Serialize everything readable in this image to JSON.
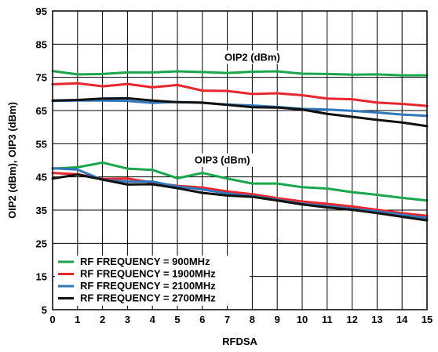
{
  "chart_data": {
    "type": "line",
    "title": "",
    "xlabel": "RFDSA",
    "ylabel": "OIP2 (dBm), OIP3 (dBm)",
    "xlim": [
      0,
      15
    ],
    "ylim": [
      5,
      95
    ],
    "x_ticks": [
      0,
      1,
      2,
      3,
      4,
      5,
      6,
      7,
      8,
      9,
      10,
      11,
      12,
      13,
      14,
      15
    ],
    "y_ticks": [
      5,
      15,
      25,
      35,
      45,
      55,
      65,
      75,
      85,
      95
    ],
    "grid": true,
    "legend_position": "bottom-left",
    "annotations": [
      {
        "text": "OIP2 (dBm)",
        "x": 8,
        "y": 80
      },
      {
        "text": "OIP3 (dBm)",
        "x": 6.8,
        "y": 49
      }
    ],
    "series": [
      {
        "name": "RF FREQUENCY = 900MHz",
        "color": "#1aa64a",
        "group": "OIP2",
        "x": [
          0,
          1,
          2,
          3,
          4,
          5,
          6,
          7,
          8,
          9,
          10,
          11,
          12,
          13,
          14,
          15
        ],
        "y": [
          76.9,
          75.9,
          76.0,
          76.5,
          76.5,
          76.8,
          76.6,
          76.3,
          76.7,
          76.8,
          76.1,
          76.0,
          75.8,
          75.9,
          75.6,
          75.6
        ]
      },
      {
        "name": "RF FREQUENCY = 1900MHz",
        "color": "#e8262b",
        "group": "OIP2",
        "x": [
          0,
          1,
          2,
          3,
          4,
          5,
          6,
          7,
          8,
          9,
          10,
          11,
          12,
          13,
          14,
          15
        ],
        "y": [
          72.9,
          73.2,
          72.3,
          73.0,
          72.0,
          72.7,
          71.0,
          70.9,
          70.0,
          70.2,
          69.6,
          68.6,
          68.4,
          67.4,
          67.0,
          66.4
        ]
      },
      {
        "name": "RF FREQUENCY = 2100MHz",
        "color": "#2f78bd",
        "group": "OIP2",
        "x": [
          0,
          1,
          2,
          3,
          4,
          5,
          6,
          7,
          8,
          9,
          10,
          11,
          12,
          13,
          14,
          15
        ],
        "y": [
          67.9,
          68.0,
          68.0,
          67.9,
          67.3,
          67.6,
          67.3,
          66.8,
          66.5,
          66.1,
          65.5,
          65.3,
          64.9,
          64.4,
          63.8,
          63.4
        ]
      },
      {
        "name": "RF FREQUENCY = 2700MHz",
        "color": "#111111",
        "group": "OIP2",
        "x": [
          0,
          1,
          2,
          3,
          4,
          5,
          6,
          7,
          8,
          9,
          10,
          11,
          12,
          13,
          14,
          15
        ],
        "y": [
          68.0,
          68.2,
          68.6,
          68.7,
          68.0,
          67.5,
          67.4,
          66.7,
          66.0,
          65.9,
          65.3,
          64.0,
          63.1,
          62.2,
          61.4,
          60.3
        ]
      },
      {
        "name": "RF FREQUENCY = 900MHz",
        "color": "#1aa64a",
        "group": "OIP3",
        "x": [
          0,
          1,
          2,
          3,
          4,
          5,
          6,
          7,
          8,
          9,
          10,
          11,
          12,
          13,
          14,
          15
        ],
        "y": [
          47.5,
          47.9,
          49.3,
          47.5,
          47.1,
          44.6,
          46.2,
          44.5,
          43.0,
          43.0,
          41.9,
          41.5,
          40.4,
          39.6,
          38.7,
          37.9
        ]
      },
      {
        "name": "RF FREQUENCY = 1900MHz",
        "color": "#e8262b",
        "group": "OIP3",
        "x": [
          0,
          1,
          2,
          3,
          4,
          5,
          6,
          7,
          8,
          9,
          10,
          11,
          12,
          13,
          14,
          15
        ],
        "y": [
          46.2,
          45.8,
          44.4,
          44.5,
          43.3,
          42.3,
          41.8,
          40.6,
          39.8,
          38.6,
          37.6,
          36.9,
          36.1,
          35.1,
          34.1,
          33.3
        ]
      },
      {
        "name": "RF FREQUENCY = 2100MHz",
        "color": "#2f78bd",
        "group": "OIP3",
        "x": [
          0,
          1,
          2,
          3,
          4,
          5,
          6,
          7,
          8,
          9,
          10,
          11,
          12,
          13,
          14,
          15
        ],
        "y": [
          47.6,
          47.2,
          44.1,
          43.6,
          43.6,
          42.1,
          41.2,
          40.0,
          39.2,
          38.1,
          36.9,
          36.2,
          35.4,
          34.6,
          33.6,
          32.6
        ]
      },
      {
        "name": "RF FREQUENCY = 2700MHz",
        "color": "#111111",
        "group": "OIP3",
        "x": [
          0,
          1,
          2,
          3,
          4,
          5,
          6,
          7,
          8,
          9,
          10,
          11,
          12,
          13,
          14,
          15
        ],
        "y": [
          44.5,
          45.7,
          44.2,
          42.7,
          42.8,
          41.6,
          40.2,
          39.4,
          39.0,
          37.9,
          36.7,
          35.8,
          35.1,
          34.1,
          33.0,
          31.9
        ]
      }
    ],
    "legend": [
      {
        "label": "RF FREQUENCY = 900MHz",
        "color": "#1aa64a"
      },
      {
        "label": "RF FREQUENCY = 1900MHz",
        "color": "#e8262b"
      },
      {
        "label": "RF FREQUENCY = 2100MHz",
        "color": "#2f78bd"
      },
      {
        "label": "RF FREQUENCY = 2700MHz",
        "color": "#111111"
      }
    ]
  }
}
